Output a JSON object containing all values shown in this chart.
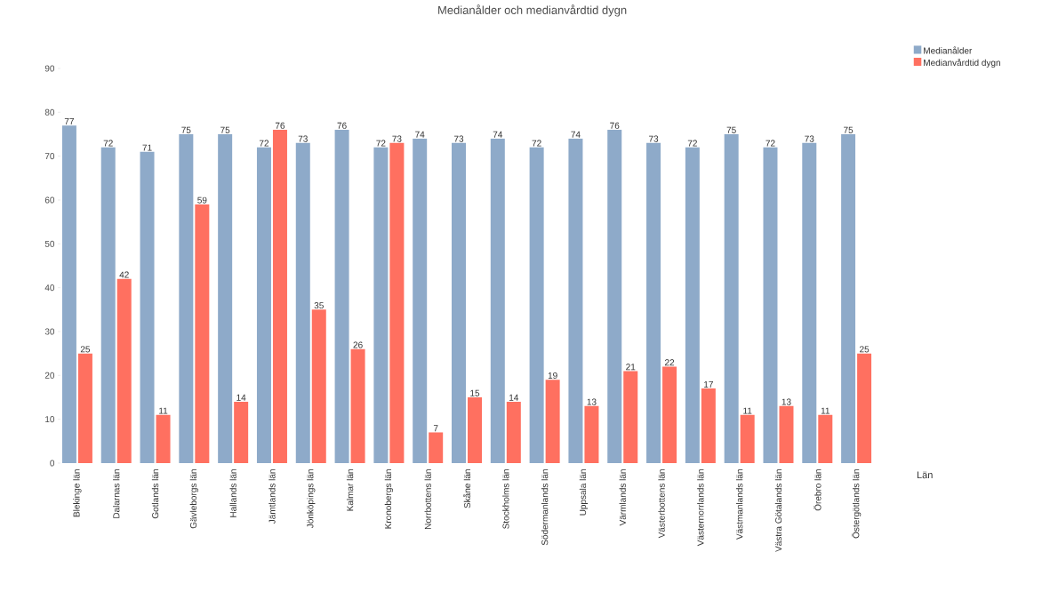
{
  "chart_data": {
    "type": "bar",
    "title": "Medianålder och medianvårdtid dygn",
    "xlabel": "Län",
    "categories": [
      "Blekinge län",
      "Dalarnas län",
      "Gotlands län",
      "Gävleborgs län",
      "Hallands län",
      "Jämtlands län",
      "Jönköpings län",
      "Kalmar län",
      "Kronobergs län",
      "Norrbottens län",
      "Skåne län",
      "Stockholms län",
      "Södermanlands län",
      "Uppsala län",
      "Värmlands län",
      "Västerbottens län",
      "Västernorrlands län",
      "Västmanlands län",
      "Västra Götalands län",
      "Örebro län",
      "Östergötlands län"
    ],
    "series": [
      {
        "name": "Medianålder",
        "color": "#8eaac9",
        "values": [
          77,
          72,
          71,
          75,
          75,
          72,
          73,
          76,
          72,
          74,
          73,
          74,
          72,
          74,
          76,
          73,
          72,
          75,
          72,
          73,
          75
        ]
      },
      {
        "name": "Medianvårdtid dygn",
        "color": "#ff7060",
        "values": [
          25,
          42,
          11,
          59,
          14,
          76,
          35,
          26,
          73,
          7,
          15,
          14,
          19,
          13,
          21,
          22,
          17,
          11,
          13,
          11,
          25
        ]
      }
    ],
    "ylim": [
      0,
      90
    ],
    "yticks": [
      0,
      10,
      20,
      30,
      40,
      50,
      60,
      70,
      80,
      90
    ],
    "data_labels": true,
    "grid": false,
    "legend": "top right"
  }
}
